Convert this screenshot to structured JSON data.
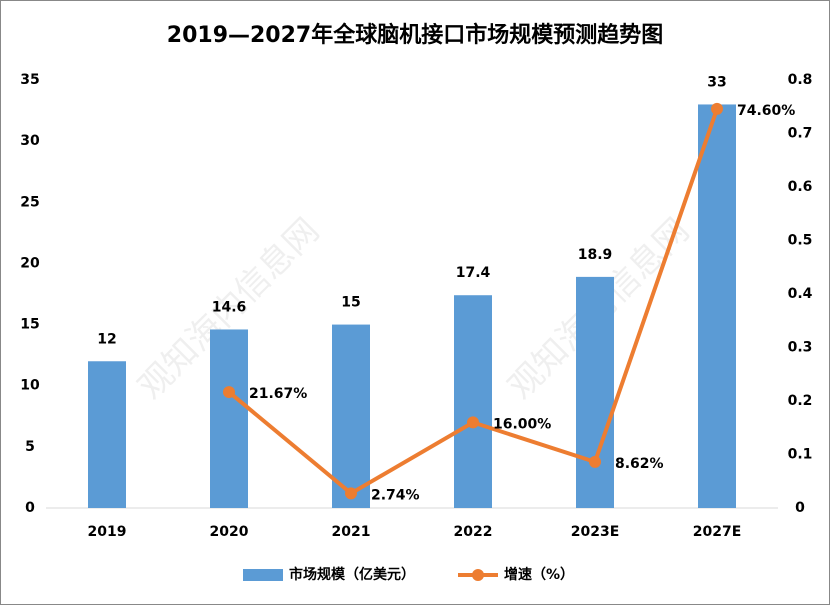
{
  "chart_data": {
    "type": "bar-line",
    "title": "2019—2027年全球脑机接口市场规模预测趋势图",
    "categories": [
      "2019",
      "2020",
      "2021",
      "2022",
      "2023E",
      "2027E"
    ],
    "series": [
      {
        "name": "市场规模（亿美元）",
        "type": "bar",
        "color": "#5b9bd5",
        "values": [
          12,
          14.6,
          15,
          17.4,
          18.9,
          33
        ]
      },
      {
        "name": "增速（%）",
        "type": "line",
        "axis": "y2",
        "color": "#ed7d31",
        "values": [
          null,
          0.2167,
          0.0274,
          0.16,
          0.0862,
          0.746
        ],
        "value_labels": [
          null,
          "21.67%",
          "2.74%",
          "16.00%",
          "8.62%",
          "74.60%"
        ]
      }
    ],
    "ylim": [
      0,
      35
    ],
    "yticks": [
      0,
      5,
      10,
      15,
      20,
      25,
      30,
      35
    ],
    "y2lim": [
      0,
      0.8
    ],
    "y2ticks": [
      0,
      0.1,
      0.2,
      0.3,
      0.4,
      0.5,
      0.6,
      0.7,
      0.8
    ],
    "grid": false,
    "legend": "bottom",
    "watermark": "观知海内信息网"
  }
}
